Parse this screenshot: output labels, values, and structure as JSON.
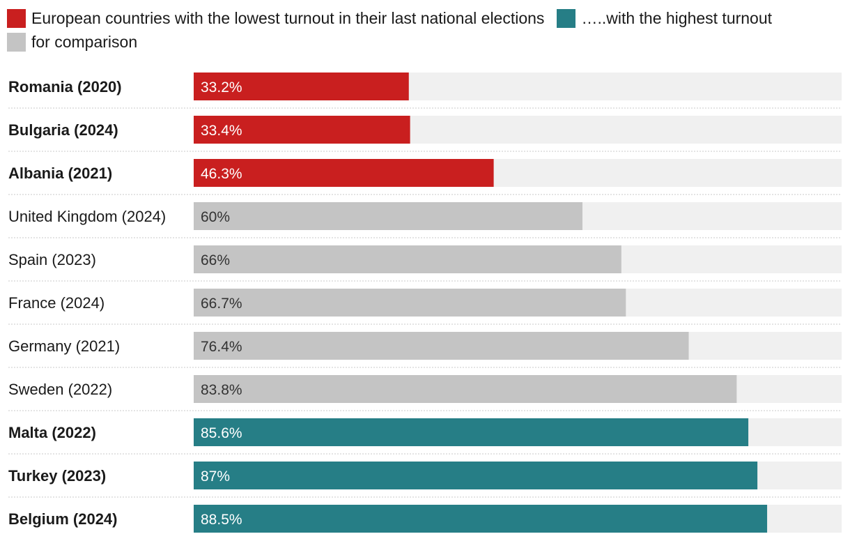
{
  "chart_data": {
    "type": "bar",
    "orientation": "horizontal",
    "xlim": [
      0,
      100
    ],
    "legend": [
      {
        "label": "European countries with the lowest turnout in their last national elections",
        "color": "#c91f1f"
      },
      {
        "label": "…..with the highest turnout",
        "color": "#267e86"
      },
      {
        "label": "for comparison",
        "color": "#c4c4c4"
      }
    ],
    "categories": [
      "Romania (2020)",
      "Bulgaria (2024)",
      "Albania (2021)",
      "United Kingdom (2024)",
      "Spain (2023)",
      "France (2024)",
      "Germany (2021)",
      "Sweden (2022)",
      "Malta (2022)",
      "Turkey (2023)",
      "Belgium (2024)"
    ],
    "values": [
      33.2,
      33.4,
      46.3,
      60,
      66,
      66.7,
      76.4,
      83.8,
      85.6,
      87,
      88.5
    ],
    "value_labels": [
      "33.2%",
      "33.4%",
      "46.3%",
      "60%",
      "66%",
      "66.7%",
      "76.4%",
      "83.8%",
      "85.6%",
      "87%",
      "88.5%"
    ],
    "groups": [
      "lowest",
      "lowest",
      "lowest",
      "comparison",
      "comparison",
      "comparison",
      "comparison",
      "comparison",
      "highest",
      "highest",
      "highest"
    ],
    "group_colors": {
      "lowest": "#c91f1f",
      "highest": "#267e86",
      "comparison": "#c4c4c4"
    },
    "background_bar_color": "#f0f0f0"
  }
}
